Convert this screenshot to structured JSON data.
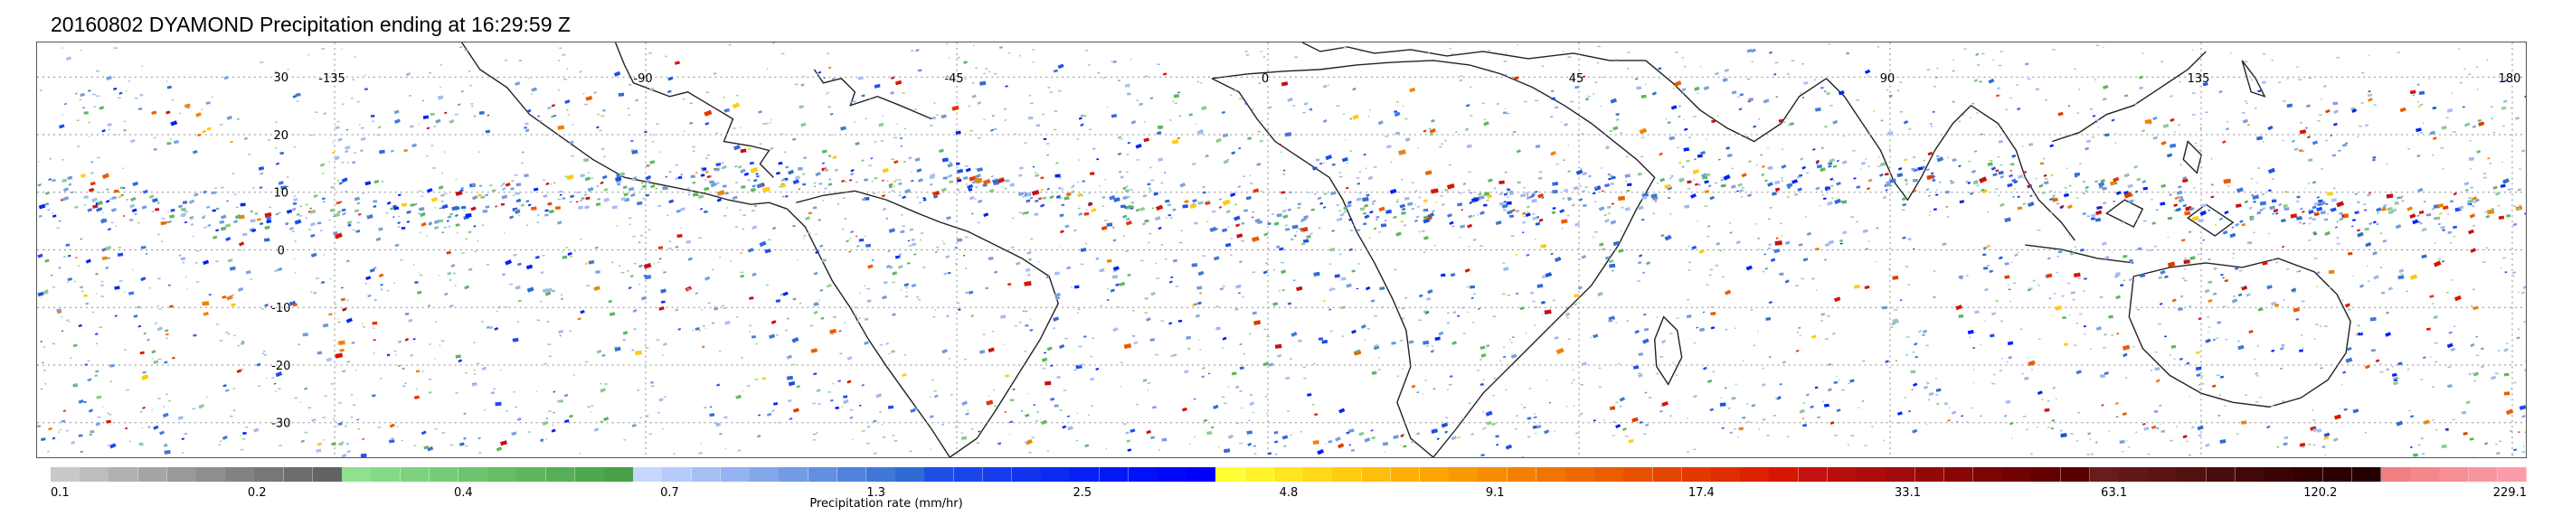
{
  "title": "20160802 DYAMOND Precipitation ending at 16:29:59 Z",
  "map": {
    "lon_labels": [
      "-135",
      "-90",
      "-45",
      "0",
      "45",
      "90",
      "135",
      "180"
    ],
    "lat_labels": [
      "30",
      "20",
      "10",
      "0",
      "-10",
      "-20",
      "-30"
    ],
    "gridlines": "dotted"
  },
  "colorbar": {
    "title": "Precipitation rate (mm/hr)",
    "tick_labels": [
      "0.1",
      "0.2",
      "0.4",
      "0.7",
      "1.3",
      "2.5",
      "4.8",
      "9.1",
      "17.4",
      "33.1",
      "63.1",
      "120.2",
      "229.1"
    ],
    "colors": [
      "#c9c9c9",
      "#bdbdbd",
      "#b1b1b1",
      "#a5a5a5",
      "#999999",
      "#8e8e8e",
      "#828282",
      "#777777",
      "#6d6d6d",
      "#636363",
      "#8fe08f",
      "#86d986",
      "#7ed27e",
      "#76cb76",
      "#6ec46e",
      "#66bd66",
      "#5eb65e",
      "#56af56",
      "#4ea84e",
      "#48a148",
      "#c7d7ff",
      "#b6cbfa",
      "#a5bff5",
      "#95b3f0",
      "#84a7eb",
      "#739be6",
      "#628fe1",
      "#5283dc",
      "#4177d7",
      "#306bd2",
      "#1f4fe6",
      "#1a46e8",
      "#153deb",
      "#1034ed",
      "#0b2bf0",
      "#0622f2",
      "#0019f5",
      "#0010f7",
      "#0008fa",
      "#0000fc",
      "#ffff33",
      "#fff22b",
      "#ffe523",
      "#ffd81b",
      "#ffcb13",
      "#ffbe0b",
      "#ffb103",
      "#fca500",
      "#f99900",
      "#f68d00",
      "#f38100",
      "#f07500",
      "#ed6900",
      "#ea5d00",
      "#e75100",
      "#e44500",
      "#e13900",
      "#de2d00",
      "#db2100",
      "#d81500",
      "#c41010",
      "#b80e0e",
      "#ac0c0c",
      "#a00a0a",
      "#940808",
      "#880606",
      "#7c0404",
      "#700202",
      "#640000",
      "#580000",
      "#6a1c1c",
      "#621818",
      "#5a1414",
      "#521010",
      "#4a0c0c",
      "#420808",
      "#3a0404",
      "#320000",
      "#2c0000",
      "#260000",
      "#f08080",
      "#f3878a",
      "#f68e94",
      "#f9959e",
      "#fc9ca8"
    ]
  }
}
